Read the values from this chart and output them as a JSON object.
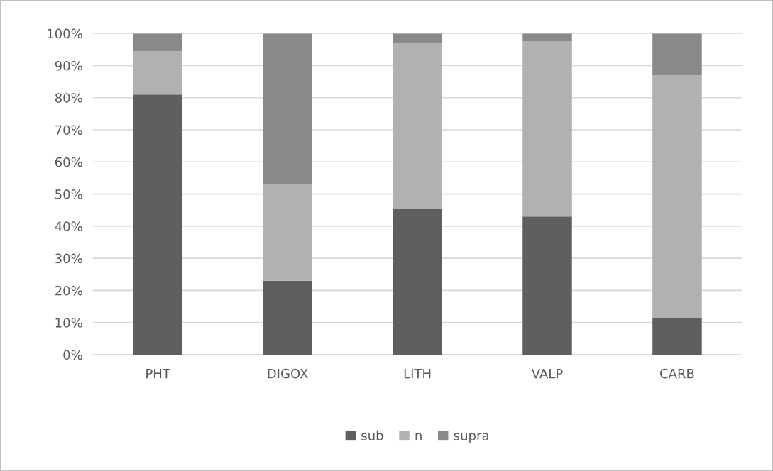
{
  "chart_data": {
    "type": "bar",
    "stacked": true,
    "categories": [
      "PHT",
      "DIGOX",
      "LITH",
      "VALP",
      "CARB"
    ],
    "series": [
      {
        "name": "sub",
        "color": "#5f5f5f",
        "values": [
          81,
          23,
          45.5,
          43,
          11.5
        ]
      },
      {
        "name": "n",
        "color": "#b1b1b1",
        "values": [
          13.5,
          30,
          51.5,
          54.5,
          75.5
        ]
      },
      {
        "name": "supra",
        "color": "#898989",
        "values": [
          5.5,
          47,
          3,
          2.5,
          13
        ]
      }
    ],
    "ylim": [
      0,
      100
    ],
    "yticks": [
      {
        "value": 0,
        "label": "0%"
      },
      {
        "value": 10,
        "label": "10%"
      },
      {
        "value": 20,
        "label": "20%"
      },
      {
        "value": 30,
        "label": "30%"
      },
      {
        "value": 40,
        "label": "40%"
      },
      {
        "value": 50,
        "label": "50%"
      },
      {
        "value": 60,
        "label": "60%"
      },
      {
        "value": 70,
        "label": "70%"
      },
      {
        "value": 80,
        "label": "80%"
      },
      {
        "value": 90,
        "label": "90%"
      },
      {
        "value": 100,
        "label": "100%"
      }
    ],
    "grid": "y",
    "legend": "bottom"
  }
}
